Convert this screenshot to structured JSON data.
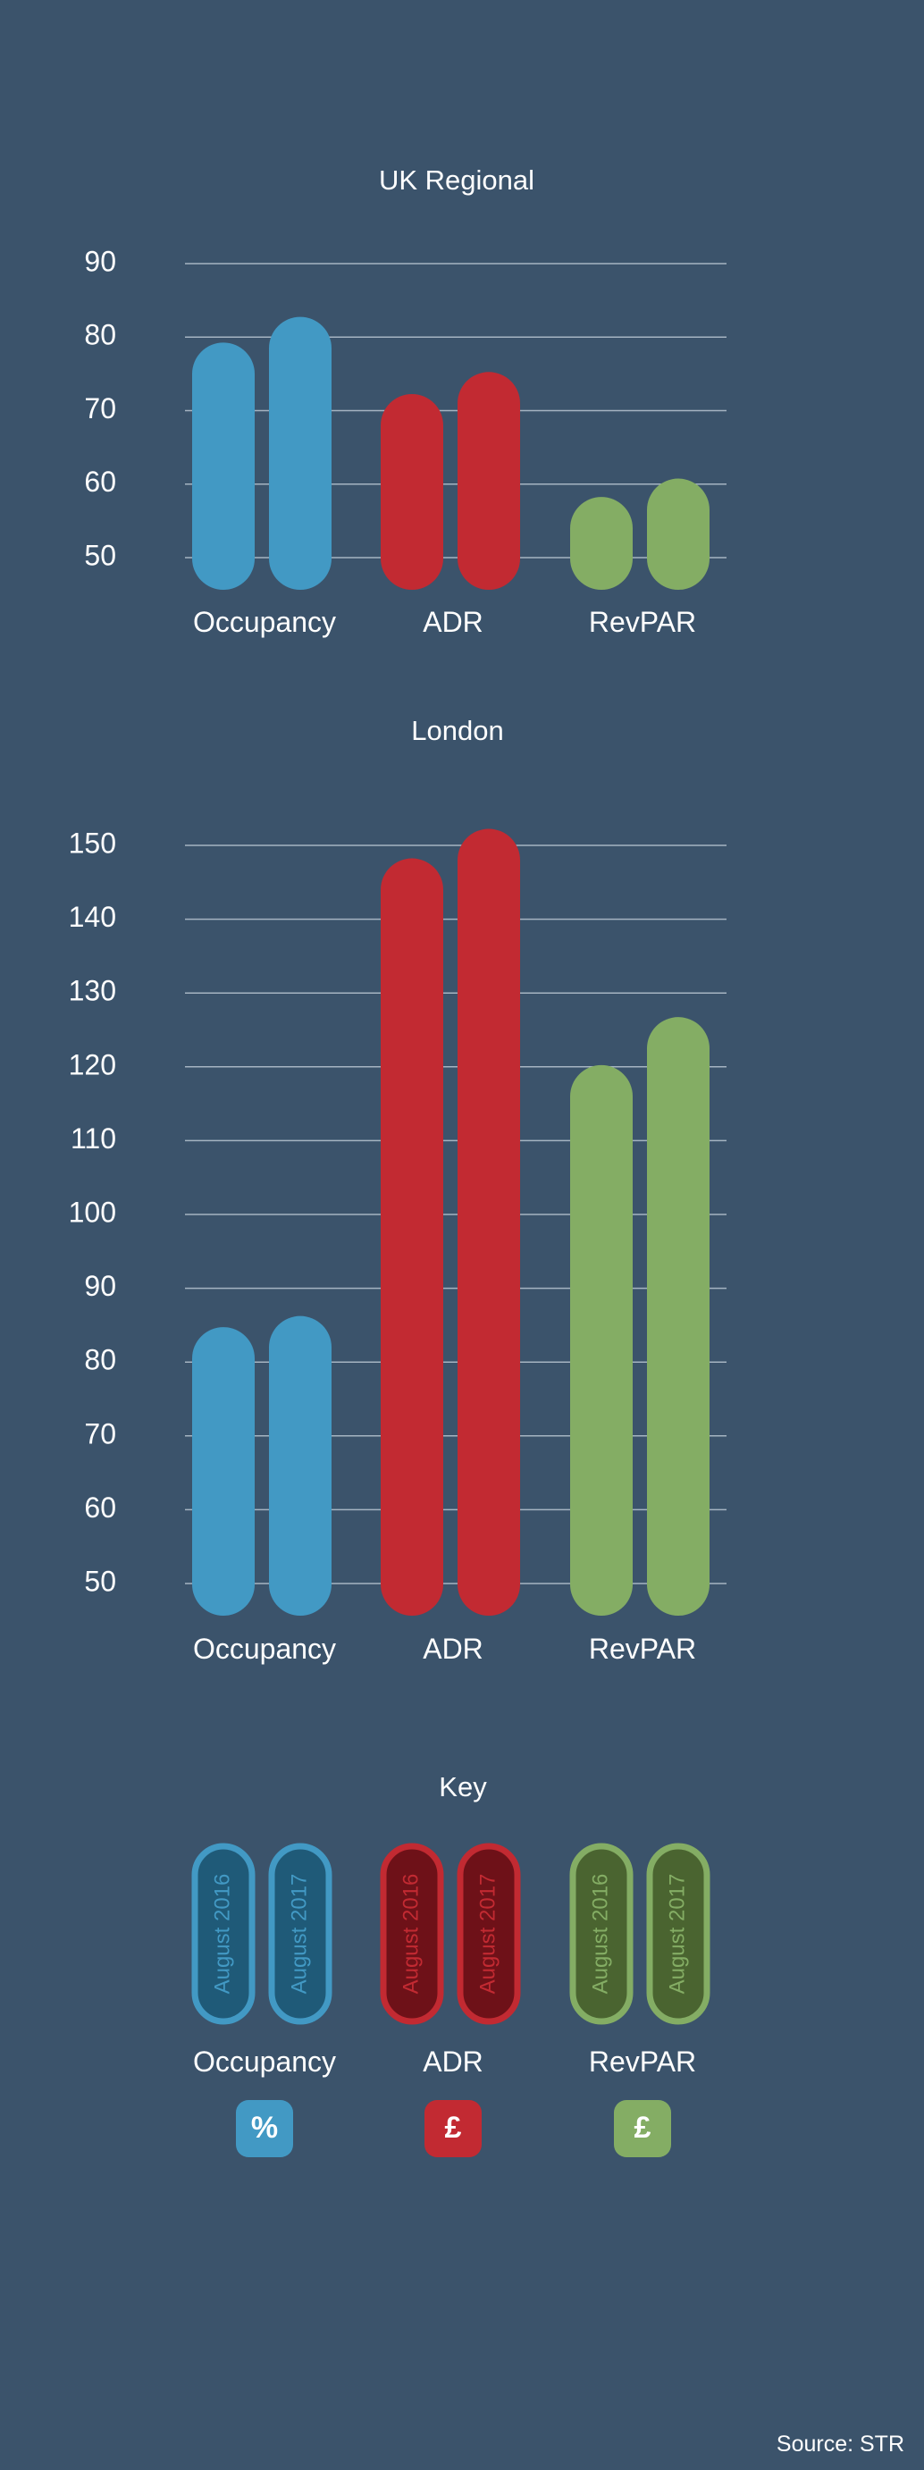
{
  "chart_data": [
    {
      "type": "bar",
      "title": "UK Regional",
      "categories": [
        "Occupancy",
        "ADR",
        "RevPAR"
      ],
      "series": [
        {
          "name": "August 2016",
          "values": [
            75,
            68,
            54
          ]
        },
        {
          "name": "August 2017",
          "values": [
            78.5,
            71,
            56.5
          ]
        }
      ],
      "ylim": [
        50,
        90
      ],
      "yticks": [
        50,
        60,
        70,
        80,
        90
      ],
      "grid": true
    },
    {
      "type": "bar",
      "title": "London",
      "categories": [
        "Occupancy",
        "ADR",
        "RevPAR"
      ],
      "series": [
        {
          "name": "August 2016",
          "values": [
            80.5,
            144,
            116
          ]
        },
        {
          "name": "August 2017",
          "values": [
            82,
            148,
            122.5
          ]
        }
      ],
      "ylim": [
        50,
        150
      ],
      "yticks": [
        50,
        60,
        70,
        80,
        90,
        100,
        110,
        120,
        130,
        140,
        150
      ],
      "grid": true
    }
  ],
  "colors": {
    "background": "#3b536b",
    "occupancy": "#4299c4",
    "adr": "#c22a32",
    "revpar": "#84ad64",
    "occupancy_dark": "#1f5a78",
    "adr_dark": "#6e1118",
    "revpar_dark": "#4a6430",
    "grid": "#a6b4c2"
  },
  "key": {
    "title": "Key",
    "groups": [
      {
        "category": "Occupancy",
        "unit": "%",
        "colorKey": "occupancy",
        "labels": [
          "August 2016",
          "August 2017"
        ]
      },
      {
        "category": "ADR",
        "unit": "£",
        "colorKey": "adr",
        "labels": [
          "August 2016",
          "August 2017"
        ]
      },
      {
        "category": "RevPAR",
        "unit": "£",
        "colorKey": "revpar",
        "labels": [
          "August 2016",
          "August 2017"
        ]
      }
    ]
  },
  "source": "Source: STR"
}
